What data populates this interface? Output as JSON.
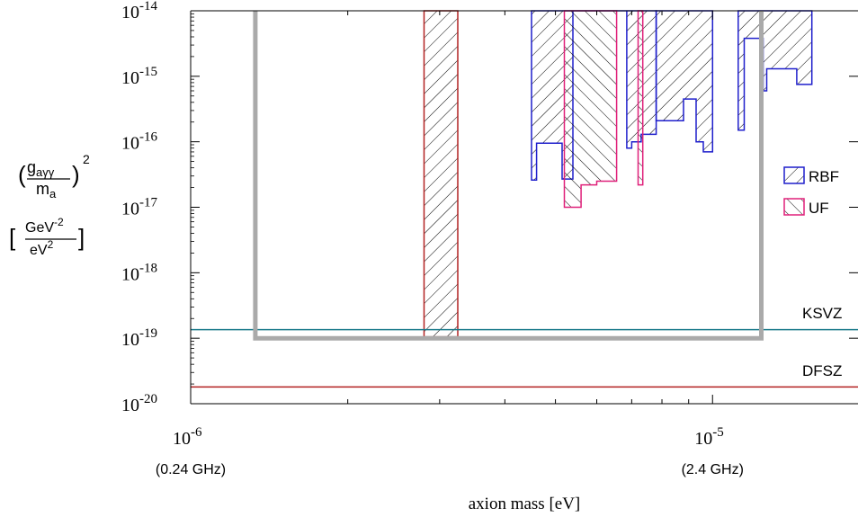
{
  "chart_data": {
    "type": "area",
    "title": "",
    "xlabel": "axion mass [eV]",
    "ylabel": {
      "g_sub": "aγγ",
      "g_base": "g",
      "m_base": "m",
      "m_sub": "a",
      "exponent": "2",
      "units_num": "GeV",
      "units_num_exp": "-2",
      "units_den": "eV",
      "units_den_exp": "2"
    },
    "x_scale": "log",
    "y_scale": "log",
    "xlim": [
      1e-06,
      1.9e-05
    ],
    "ylim": [
      1e-20,
      1e-14
    ],
    "x_ticks": [
      {
        "base": "10",
        "exp": "-6",
        "value": 1e-06,
        "freq": "(0.24 GHz)"
      },
      {
        "base": "10",
        "exp": "-5",
        "value": 1e-05,
        "freq": "(2.4 GHz)"
      }
    ],
    "y_ticks": [
      {
        "base": "10",
        "exp": "-14",
        "value": 1e-14
      },
      {
        "base": "10",
        "exp": "-15",
        "value": 1e-15
      },
      {
        "base": "10",
        "exp": "-16",
        "value": 1e-16
      },
      {
        "base": "10",
        "exp": "-17",
        "value": 1e-17
      },
      {
        "base": "10",
        "exp": "-18",
        "value": 1e-18
      },
      {
        "base": "10",
        "exp": "-19",
        "value": 1e-19
      },
      {
        "base": "10",
        "exp": "-20",
        "value": 1e-20
      }
    ],
    "legend": {
      "placement": "right",
      "entries": [
        {
          "label": "RBF",
          "color": "#1f1fcc",
          "hatch": "forward"
        },
        {
          "label": "UF",
          "color": "#e0207a",
          "hatch": "backward"
        }
      ]
    },
    "lines": [
      {
        "label": "KSVZ",
        "y": 1.35e-19,
        "color": "#1a7a8a"
      },
      {
        "label": "DFSZ",
        "y": 1.8e-20,
        "color": "#b22222"
      }
    ],
    "regions": [
      {
        "series": "red-bar",
        "color": "#b22222",
        "hatch": "forward",
        "points": [
          [
            2.8e-06,
            1e-14
          ],
          [
            3.25e-06,
            1e-14
          ],
          [
            3.25e-06,
            1.05e-19
          ],
          [
            2.8e-06,
            1.05e-19
          ]
        ]
      },
      {
        "series": "RBF",
        "color": "#1f1fcc",
        "hatch": "forward",
        "points": [
          [
            4.5e-06,
            1e-14
          ],
          [
            7.8e-06,
            1e-14
          ],
          [
            7.8e-06,
            1.3e-16
          ],
          [
            7.3e-06,
            1.3e-16
          ],
          [
            7.3e-06,
            1e-16
          ],
          [
            7e-06,
            1e-16
          ],
          [
            7e-06,
            8e-17
          ],
          [
            6.85e-06,
            8e-17
          ],
          [
            6.85e-06,
            1e-14
          ],
          [
            5.4e-06,
            1e-14
          ],
          [
            5.4e-06,
            2.7e-17
          ],
          [
            5.15e-06,
            2.7e-17
          ],
          [
            5.15e-06,
            9.5e-17
          ],
          [
            4.6e-06,
            9.5e-17
          ],
          [
            4.6e-06,
            2.6e-17
          ],
          [
            4.5e-06,
            2.6e-17
          ]
        ]
      },
      {
        "series": "RBF",
        "color": "#1f1fcc",
        "hatch": "forward",
        "points": [
          [
            7.8e-06,
            1e-14
          ],
          [
            1e-05,
            1e-14
          ],
          [
            1e-05,
            7e-17
          ],
          [
            9.6e-06,
            7e-17
          ],
          [
            9.6e-06,
            1e-16
          ],
          [
            9.3e-06,
            1e-16
          ],
          [
            9.3e-06,
            4.5e-16
          ],
          [
            8.8e-06,
            4.5e-16
          ],
          [
            8.8e-06,
            2.1e-16
          ],
          [
            7.8e-06,
            2.1e-16
          ]
        ]
      },
      {
        "series": "RBF",
        "color": "#1f1fcc",
        "hatch": "forward",
        "points": [
          [
            1.12e-05,
            1e-14
          ],
          [
            1.55e-05,
            1e-14
          ],
          [
            1.55e-05,
            7.5e-16
          ],
          [
            1.45e-05,
            7.5e-16
          ],
          [
            1.45e-05,
            1.3e-15
          ],
          [
            1.27e-05,
            1.3e-15
          ],
          [
            1.27e-05,
            6e-16
          ],
          [
            1.25e-05,
            6e-16
          ],
          [
            1.25e-05,
            3.8e-15
          ],
          [
            1.15e-05,
            3.8e-15
          ],
          [
            1.15e-05,
            1.5e-16
          ],
          [
            1.12e-05,
            1.5e-16
          ]
        ]
      },
      {
        "series": "UF",
        "color": "#e0207a",
        "hatch": "backward",
        "points": [
          [
            5.2e-06,
            1e-14
          ],
          [
            6.55e-06,
            1e-14
          ],
          [
            6.55e-06,
            2.5e-17
          ],
          [
            6e-06,
            2.5e-17
          ],
          [
            6e-06,
            2.2e-17
          ],
          [
            5.6e-06,
            2.2e-17
          ],
          [
            5.6e-06,
            1e-17
          ],
          [
            5.2e-06,
            1e-17
          ]
        ]
      },
      {
        "series": "UF",
        "color": "#e0207a",
        "hatch": "backward",
        "points": [
          [
            7.2e-06,
            1e-14
          ],
          [
            7.35e-06,
            1e-14
          ],
          [
            7.35e-06,
            2.2e-17
          ],
          [
            7.2e-06,
            2.2e-17
          ]
        ]
      }
    ],
    "gray_box": {
      "color": "#aaaaaa",
      "points": [
        [
          1.33e-06,
          1e-14
        ],
        [
          1.33e-06,
          1e-19
        ],
        [
          1.24e-05,
          1e-19
        ],
        [
          1.24e-05,
          1e-14
        ]
      ]
    }
  }
}
